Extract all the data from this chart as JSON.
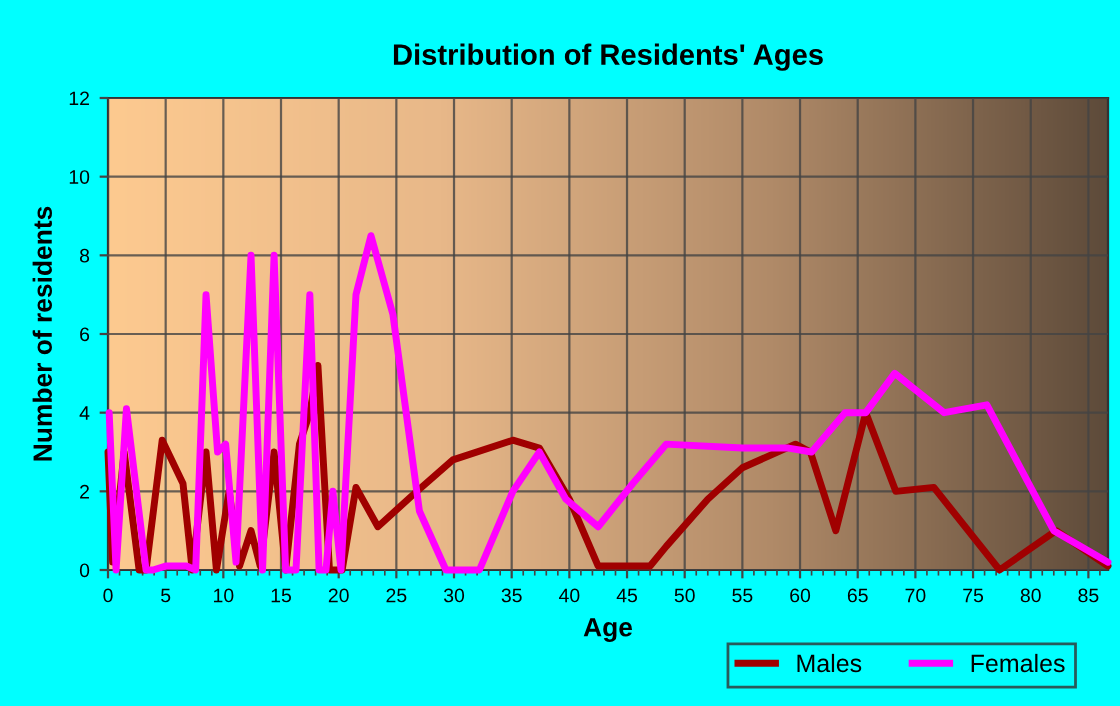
{
  "chart_data": {
    "type": "line",
    "title": "Distribution of Residents' Ages",
    "xlabel": "Age",
    "ylabel": "Number of residents",
    "xlim": [
      0,
      86.7
    ],
    "xticks": [
      0,
      5,
      10,
      15,
      20,
      25,
      30,
      35,
      40,
      45,
      50,
      55,
      60,
      65,
      70,
      75,
      80,
      85
    ],
    "ylim": [
      0,
      12
    ],
    "yticks": [
      0,
      2,
      4,
      6,
      8,
      10,
      12
    ],
    "grid": true,
    "legend": "bottom right",
    "marker": "none",
    "line_style": "solid",
    "series": [
      {
        "name": "Males",
        "color": "#a00000",
        "x": [
          0,
          0.4,
          1.4,
          2.7,
          3.3,
          4.7,
          6.5,
          7.3,
          8.5,
          9.4,
          10.5,
          11.4,
          12.4,
          13.2,
          14.4,
          15.4,
          16.6,
          17.5,
          18.2,
          19.2,
          20.3,
          21.5,
          23.4,
          26.4,
          29.9,
          35.1,
          37.4,
          40,
          42.5,
          47,
          48.4,
          52,
          55,
          59.6,
          60.9,
          63.1,
          65.7,
          68.3,
          71.6,
          77.3,
          82.2,
          86.7
        ],
        "values": [
          3,
          0.2,
          3,
          0,
          0,
          3.3,
          2.2,
          0,
          3,
          0,
          2,
          0.1,
          1,
          0.1,
          3,
          0,
          3.2,
          4,
          5.2,
          0,
          0,
          2.1,
          1.1,
          1.9,
          2.8,
          3.3,
          3.1,
          1.8,
          0.1,
          0.1,
          0.6,
          1.8,
          2.6,
          3.2,
          3,
          1,
          4,
          2,
          2.1,
          0,
          1,
          0.1
        ]
      },
      {
        "name": "Females",
        "color": "#ff00ff",
        "x": [
          0.1,
          0.7,
          1.6,
          3.3,
          3.9,
          5,
          6.8,
          7.6,
          8.5,
          9.5,
          10.2,
          11.1,
          12.4,
          13.4,
          14.4,
          15.4,
          16.3,
          17.5,
          18.3,
          18.9,
          19.5,
          20.2,
          21.5,
          22.8,
          24.7,
          27,
          29.3,
          32.2,
          35.1,
          37.4,
          39.7,
          42.5,
          45.5,
          48.4,
          55,
          59,
          61,
          63.9,
          65.7,
          68.2,
          72.5,
          76.2,
          82,
          86.7
        ],
        "values": [
          4,
          0,
          4.1,
          0,
          0,
          0.1,
          0.1,
          0,
          7,
          3,
          3.2,
          0.2,
          8,
          0,
          8,
          0,
          0,
          7,
          0,
          0,
          2,
          0,
          7,
          8.5,
          6.5,
          1.5,
          0,
          0,
          2,
          3,
          1.8,
          1.1,
          2.2,
          3.2,
          3.1,
          3.1,
          3,
          4,
          4,
          5,
          4,
          4.2,
          1,
          0.2
        ]
      }
    ]
  }
}
